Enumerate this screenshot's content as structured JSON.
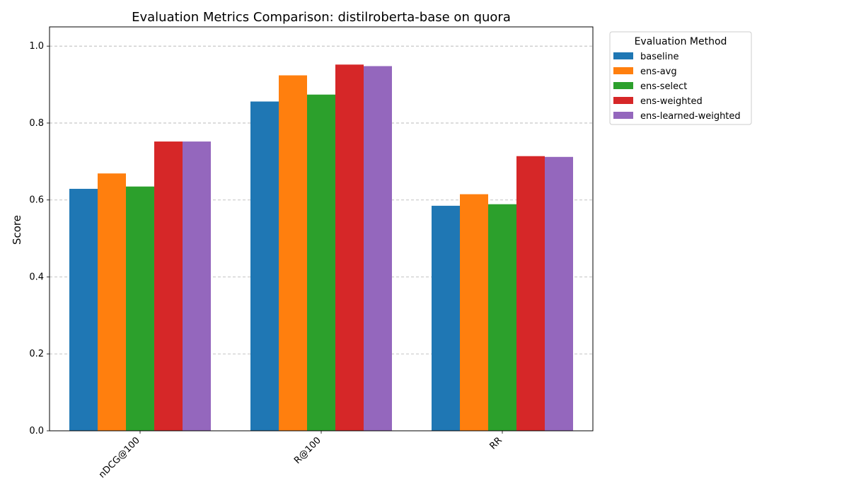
{
  "chart_data": {
    "type": "bar",
    "title": "Evaluation Metrics Comparison: distilroberta-base on quora",
    "xlabel": "",
    "ylabel": "Score",
    "ylim": [
      0,
      1.05
    ],
    "yticks": [
      0.0,
      0.2,
      0.4,
      0.6,
      0.8,
      1.0
    ],
    "ytick_labels": [
      "0.0",
      "0.2",
      "0.4",
      "0.6",
      "0.8",
      "1.0"
    ],
    "grid": "y-dashed",
    "categories": [
      "nDCG@100",
      "R@100",
      "RR"
    ],
    "legend": {
      "title": "Evaluation Method",
      "placement": "outside-top-right"
    },
    "series": [
      {
        "name": "baseline",
        "color": "#1f77b4",
        "values": [
          0.629,
          0.856,
          0.585
        ]
      },
      {
        "name": "ens-avg",
        "color": "#ff7f0e",
        "values": [
          0.669,
          0.924,
          0.615
        ]
      },
      {
        "name": "ens-select",
        "color": "#2ca02c",
        "values": [
          0.635,
          0.874,
          0.589
        ]
      },
      {
        "name": "ens-weighted",
        "color": "#d62728",
        "values": [
          0.752,
          0.952,
          0.714
        ]
      },
      {
        "name": "ens-learned-weighted",
        "color": "#9467bd",
        "values": [
          0.752,
          0.948,
          0.712
        ]
      }
    ]
  }
}
